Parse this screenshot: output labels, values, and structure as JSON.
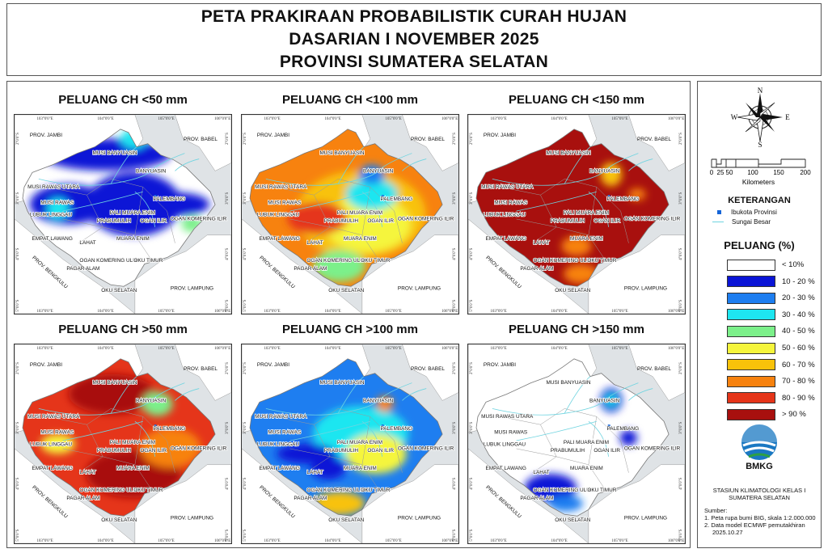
{
  "title": {
    "line1": "PETA PRAKIRAAN PROBABILISTIK CURAH HUJAN",
    "line2": "DASARIAN I NOVEMBER 2025",
    "line3": "PROVINSI SUMATERA SELATAN"
  },
  "panels": [
    {
      "title": "PELUANG CH <50 mm",
      "scheme": "low50"
    },
    {
      "title": "PELUANG CH <100 mm",
      "scheme": "low100"
    },
    {
      "title": "PELUANG CH <150 mm",
      "scheme": "low150"
    },
    {
      "title": "PELUANG CH >50 mm",
      "scheme": "high50"
    },
    {
      "title": "PELUANG CH >100 mm",
      "scheme": "high100"
    },
    {
      "title": "PELUANG CH >150 mm",
      "scheme": "high150"
    }
  ],
  "grid": {
    "top_lons": [
      "103°0'0\"E",
      "104°0'0\"E",
      "105°0'0\"E",
      "106°0'0\"E"
    ],
    "bottom_lons": [
      "103°0'0\"E",
      "104°0'0\"E",
      "105°0'0\"E",
      "106°0'0\"E"
    ],
    "lats": [
      "2°0'0\"S",
      "3°0'0\"S",
      "4°0'0\"S",
      "5°0'0\"S"
    ]
  },
  "place_names": {
    "jambi": "PROV. JAMBI",
    "babel": "PROV. BABEL",
    "bengkulu": "PROV. BENGKULU",
    "lampung": "PROV. LAMPUNG",
    "musi_banyuasin": "MUSI BANYUASIN",
    "banyuasin": "BANYUASIN",
    "musi_rawas_utara": "MUSI RAWAS UTARA",
    "musi_rawas": "MUSI RAWAS",
    "palembang": "PALEMBANG",
    "lubuk_linggau": "LUBUK LINGGAU",
    "palimuara_enim": "PALI MUARA ENIM",
    "prabumulih": "PRABUMULIH",
    "ogan_ilir": "OGAN ILIR",
    "ogan_komering_ilir": "OGAN KOMERING ILIR",
    "empat_lawang": "EMPAT LAWANG",
    "lahat": "LAHAT",
    "muara_enim": "MUARA ENIM",
    "pagar_alam": "PAGAR ALAM",
    "ogan_komering_ulu": "OGAN KOMERING ULU",
    "oku_timur": "OKU TIMUR",
    "oku_selatan": "OKU SELATAN"
  },
  "compass": {
    "n": "N",
    "s": "S",
    "e": "E",
    "w": "W"
  },
  "scale": {
    "ticks": [
      "0",
      "25",
      "50",
      "100",
      "150",
      "200"
    ],
    "unit": "Kilometers"
  },
  "legend": {
    "keterangan_title": "KETERANGAN",
    "ibukota": "Ibukota Provinsi",
    "sungai": "Sungai Besar",
    "peluang_title": "PELUANG (%)",
    "classes": [
      {
        "label": "< 10%",
        "color": "#ffffff"
      },
      {
        "label": "10 - 20 %",
        "color": "#0a14d6"
      },
      {
        "label": "20 - 30 %",
        "color": "#1e7ef0"
      },
      {
        "label": "30 - 40 %",
        "color": "#1ee6f0"
      },
      {
        "label": "40 - 50 %",
        "color": "#7cf08a"
      },
      {
        "label": "50 - 60 %",
        "color": "#f5f53c"
      },
      {
        "label": "60 - 70 %",
        "color": "#f8c20a"
      },
      {
        "label": "70 - 80 %",
        "color": "#f7820f"
      },
      {
        "label": "80 - 90 %",
        "color": "#e5351a"
      },
      {
        "label": "> 90 %",
        "color": "#a8100e"
      }
    ]
  },
  "logo": {
    "text": "BMKG"
  },
  "station": {
    "line1": "STASIUN KLIMATOLOGI KELAS I",
    "line2": "SUMATERA SELATAN"
  },
  "sources": {
    "title": "Sumber:",
    "s1": "1. Peta rupa bumi BIG, skala 1:2.000.000",
    "s2": "2. Data model ECMWF pemutakhiran",
    "s3": "2025.10.27"
  }
}
